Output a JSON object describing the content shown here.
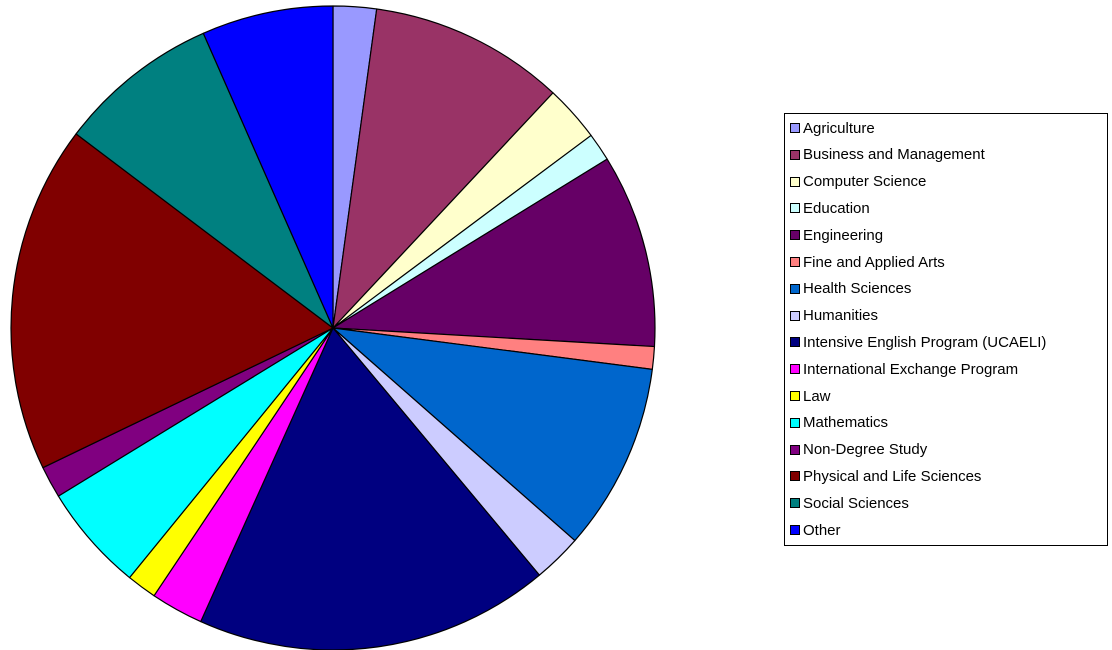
{
  "chart_data": {
    "type": "pie",
    "title": "",
    "start_angle_deg": 0,
    "direction": "clockwise",
    "legend_position": "right",
    "slices": [
      {
        "label": "Agriculture",
        "value": 2.3,
        "color": "#9999FF"
      },
      {
        "label": "Business and Management",
        "value": 10.4,
        "color": "#993366"
      },
      {
        "label": "Computer Science",
        "value": 3.0,
        "color": "#FFFFCC"
      },
      {
        "label": "Education",
        "value": 1.5,
        "color": "#CCFFFF"
      },
      {
        "label": "Engineering",
        "value": 10.3,
        "color": "#660066"
      },
      {
        "label": "Fine and Applied Arts",
        "value": 1.2,
        "color": "#FF8080"
      },
      {
        "label": "Health Sciences",
        "value": 10.0,
        "color": "#0066CC"
      },
      {
        "label": "Humanities",
        "value": 2.6,
        "color": "#CCCCFF"
      },
      {
        "label": "Intensive English Program (UCAELI)",
        "value": 18.9,
        "color": "#000080"
      },
      {
        "label": "International Exchange Program",
        "value": 2.8,
        "color": "#FF00FF"
      },
      {
        "label": "Law",
        "value": 1.6,
        "color": "#FFFF00"
      },
      {
        "label": "Mathematics",
        "value": 5.7,
        "color": "#00FFFF"
      },
      {
        "label": "Non-Degree Study",
        "value": 1.7,
        "color": "#800080"
      },
      {
        "label": "Physical and Life Sciences",
        "value": 18.5,
        "color": "#800000"
      },
      {
        "label": "Social Sciences",
        "value": 8.6,
        "color": "#008080"
      },
      {
        "label": "Other",
        "value": 7.0,
        "color": "#0000FF"
      }
    ]
  }
}
